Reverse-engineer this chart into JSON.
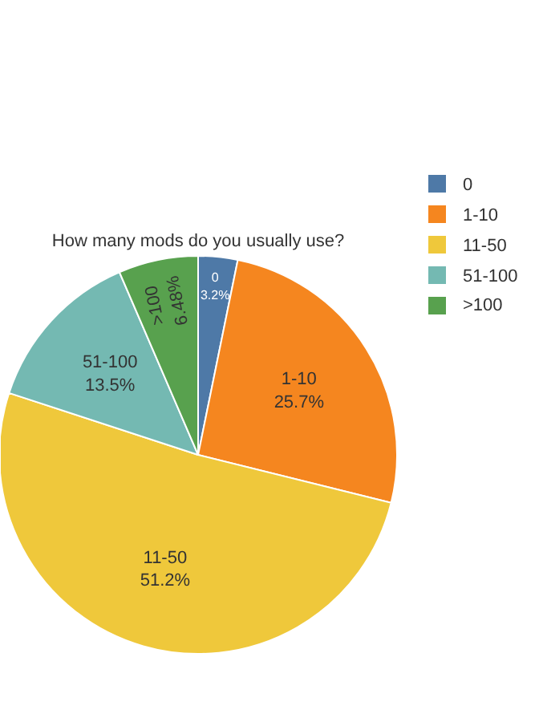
{
  "chart_data": {
    "type": "pie",
    "title": "How many mods do you usually use?",
    "categories": [
      "0",
      "1-10",
      "11-50",
      "51-100",
      ">100"
    ],
    "values": [
      3.2,
      25.7,
      51.2,
      13.5,
      6.48
    ],
    "colors": [
      "#4e79a7",
      "#f5861f",
      "#efc83b",
      "#74b9b2",
      "#58a14e"
    ],
    "value_labels": [
      "3.2%",
      "25.7%",
      "51.2%",
      "13.5%",
      "6.48%"
    ],
    "legend": "right"
  }
}
